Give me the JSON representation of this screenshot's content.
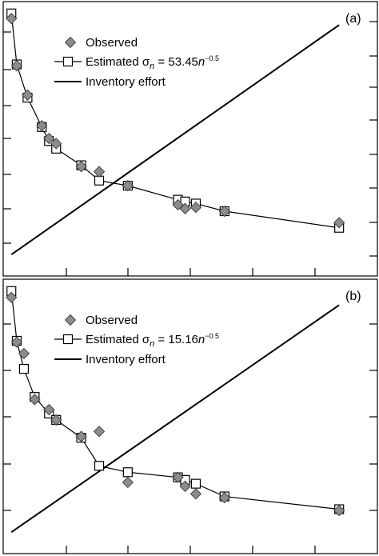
{
  "chart_data": [
    {
      "type": "line",
      "panel_label": "(a)",
      "legend": {
        "observed": "Observed",
        "estimated_prefix": "Estimated",
        "formula_symbol": "σ",
        "formula_sub": "n",
        "formula_mid": " = 53.45",
        "formula_var": "n",
        "formula_exp": "−0.5",
        "effort": "Inventory effort",
        "placement": "top-left"
      },
      "xlim": [
        0,
        10
      ],
      "ylim": [
        0,
        1
      ],
      "grid": false,
      "series": [
        {
          "name": "Observed",
          "marker": "diamond",
          "x": [
            0.05,
            0.2,
            0.5,
            0.9,
            1.1,
            1.3,
            2.0,
            2.5,
            3.3,
            4.7,
            4.9,
            5.2,
            6.0,
            9.2
          ],
          "y": [
            0.965,
            0.78,
            0.665,
            0.545,
            0.495,
            0.475,
            0.385,
            0.365,
            0.31,
            0.235,
            0.22,
            0.225,
            0.21,
            0.165
          ]
        },
        {
          "name": "Estimated",
          "marker": "square",
          "x": [
            0.05,
            0.2,
            0.5,
            0.9,
            1.1,
            1.3,
            2.0,
            2.5,
            3.3,
            4.7,
            4.9,
            5.2,
            6.0,
            9.2
          ],
          "y": [
            0.985,
            0.785,
            0.655,
            0.54,
            0.485,
            0.455,
            0.39,
            0.33,
            0.31,
            0.255,
            0.248,
            0.24,
            0.21,
            0.145
          ]
        },
        {
          "name": "Inventory effort",
          "marker": "none",
          "x": [
            0.05,
            9.2
          ],
          "y": [
            0.04,
            0.94
          ]
        }
      ]
    },
    {
      "type": "line",
      "panel_label": "(b)",
      "legend": {
        "observed": "Observed",
        "estimated_prefix": "Estimated",
        "formula_symbol": "σ",
        "formula_sub": "n",
        "formula_mid": " = 15.16",
        "formula_var": "n",
        "formula_exp": "−0.5",
        "effort": "Inventory effort",
        "placement": "top-left"
      },
      "xlim": [
        0,
        10
      ],
      "ylim": [
        0,
        1
      ],
      "grid": false,
      "series": [
        {
          "name": "Observed",
          "marker": "diamond",
          "x": [
            0.05,
            0.2,
            0.4,
            0.7,
            1.1,
            1.3,
            2.0,
            2.5,
            3.3,
            4.7,
            4.9,
            5.2,
            6.0,
            9.2
          ],
          "y": [
            0.96,
            0.785,
            0.74,
            0.56,
            0.52,
            0.48,
            0.415,
            0.435,
            0.235,
            0.255,
            0.22,
            0.19,
            0.175,
            0.125
          ]
        },
        {
          "name": "Estimated",
          "marker": "square",
          "x": [
            0.05,
            0.2,
            0.4,
            0.7,
            1.1,
            1.3,
            2.0,
            2.5,
            3.3,
            4.7,
            4.9,
            5.2,
            6.0,
            9.2
          ],
          "y": [
            0.985,
            0.79,
            0.68,
            0.57,
            0.505,
            0.48,
            0.41,
            0.3,
            0.275,
            0.255,
            0.245,
            0.23,
            0.18,
            0.13
          ]
        },
        {
          "name": "Inventory effort",
          "marker": "none",
          "x": [
            0.05,
            9.2
          ],
          "y": [
            0.04,
            0.93
          ]
        }
      ]
    }
  ]
}
